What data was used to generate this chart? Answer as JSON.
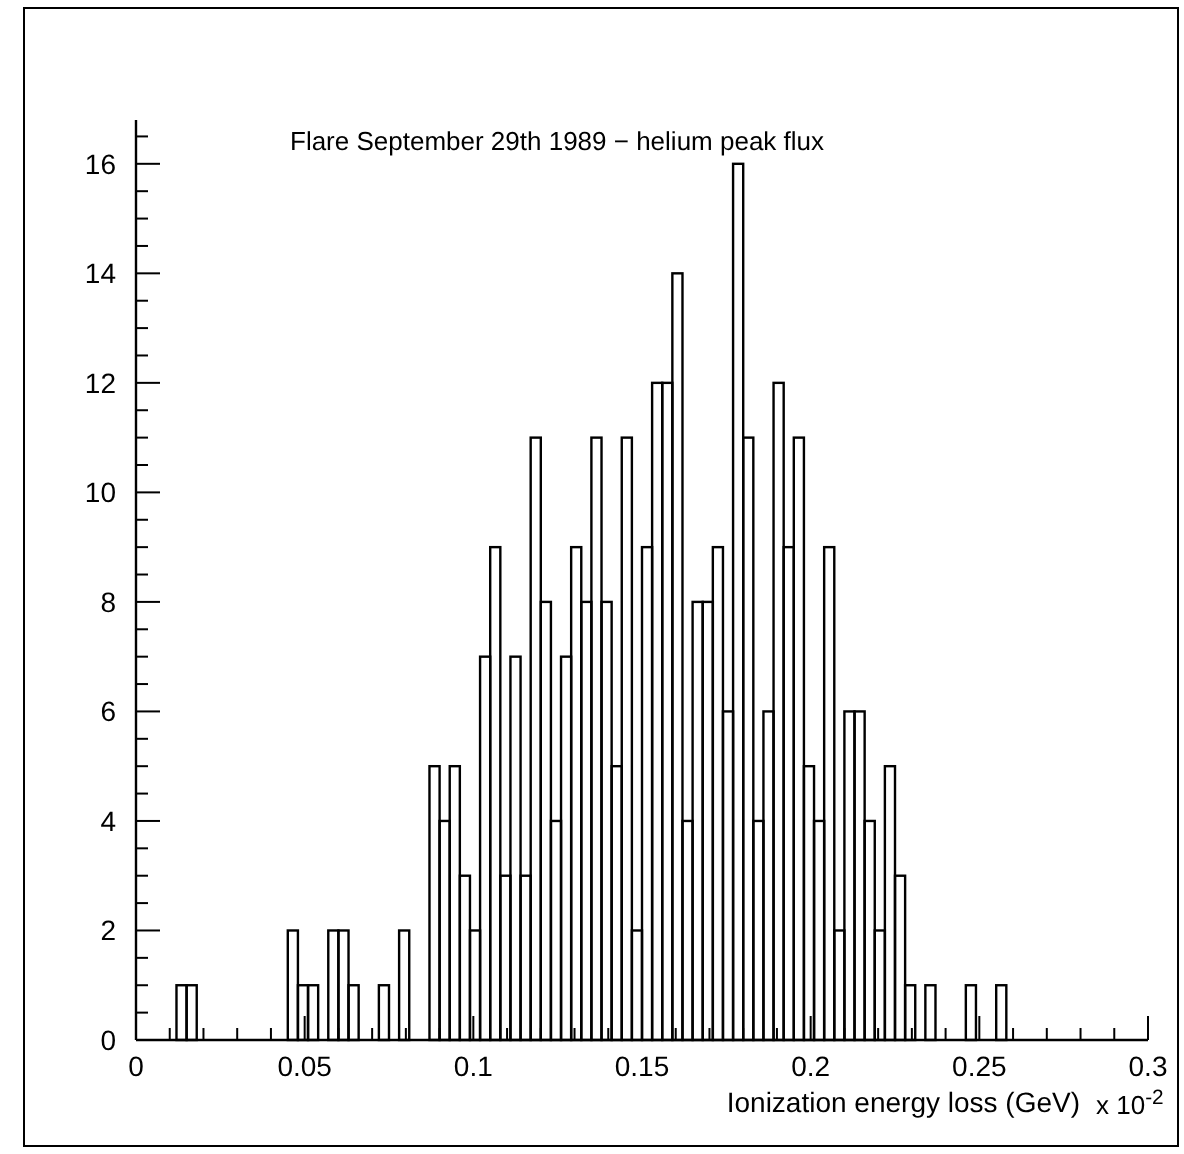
{
  "chart_data": {
    "type": "histogram",
    "title": "Flare September 29th 1989 − helium peak flux",
    "xlabel": "Ionization energy loss (GeV)",
    "annotations": [
      "x 10$^{-2}$"
    ],
    "color": "#000000",
    "bins": [
      0,
      0.003,
      0.006,
      0.009,
      0.012,
      0.015,
      0.018,
      0.021,
      0.024,
      0.027,
      0.03,
      0.033,
      0.036,
      0.039,
      0.042,
      0.045,
      0.048,
      0.051,
      0.054,
      0.057,
      0.06,
      0.063,
      0.066,
      0.069,
      0.072,
      0.075,
      0.078,
      0.081,
      0.084,
      0.087,
      0.09,
      0.093,
      0.096,
      0.099,
      0.102,
      0.105,
      0.108,
      0.111,
      0.114,
      0.117,
      0.12,
      0.123,
      0.126,
      0.129,
      0.132,
      0.135,
      0.138,
      0.141,
      0.144,
      0.147,
      0.15,
      0.153,
      0.156,
      0.159,
      0.162,
      0.165,
      0.168,
      0.171,
      0.174,
      0.177,
      0.18,
      0.183,
      0.186,
      0.189,
      0.192,
      0.195,
      0.198,
      0.201,
      0.204,
      0.207,
      0.21,
      0.213,
      0.216,
      0.219,
      0.222,
      0.225,
      0.228,
      0.231,
      0.234,
      0.237,
      0.24,
      0.243,
      0.246,
      0.249,
      0.252,
      0.255,
      0.258,
      0.261,
      0.264,
      0.267,
      0.27,
      0.273,
      0.276,
      0.279,
      0.282,
      0.285,
      0.288,
      0.291,
      0.294,
      0.297,
      0.3
    ],
    "values": [
      0,
      0,
      0,
      0,
      1,
      1,
      0,
      0,
      0,
      0,
      0,
      0,
      0,
      0,
      0,
      2,
      1,
      1,
      0,
      2,
      2,
      1,
      0,
      0,
      1,
      0,
      2,
      0,
      0,
      5,
      4,
      5,
      3,
      2,
      7,
      9,
      3,
      7,
      3,
      11,
      8,
      4,
      7,
      9,
      8,
      11,
      8,
      5,
      11,
      2,
      9,
      12,
      12,
      14,
      4,
      8,
      8,
      9,
      6,
      16,
      11,
      4,
      6,
      12,
      9,
      11,
      5,
      4,
      9,
      2,
      6,
      6,
      4,
      2,
      5,
      3,
      1,
      0,
      1,
      0,
      0,
      0,
      1,
      0,
      0,
      1,
      0,
      0,
      0,
      0,
      0,
      0,
      0,
      0,
      0,
      0,
      0,
      0,
      0,
      0
    ],
    "xlim": [
      0,
      0.3
    ],
    "xticks": [
      0,
      {
        "value": 0.01,
        "label": null
      },
      {
        "value": 0.02,
        "label": null
      },
      {
        "value": 0.03,
        "label": null
      },
      {
        "value": 0.04,
        "label": null
      },
      0.05,
      {
        "value": 0.06,
        "label": null
      },
      {
        "value": 0.07,
        "label": null
      },
      {
        "value": 0.08,
        "label": null
      },
      {
        "value": 0.09,
        "label": null
      },
      0.1,
      {
        "value": 0.11,
        "label": null
      },
      {
        "value": 0.12,
        "label": null
      },
      {
        "value": 0.13,
        "label": null
      },
      {
        "value": 0.14,
        "label": null
      },
      0.15,
      {
        "value": 0.16,
        "label": null
      },
      {
        "value": 0.17,
        "label": null
      },
      {
        "value": 0.18,
        "label": null
      },
      {
        "value": 0.19,
        "label": null
      },
      0.2,
      {
        "value": 0.21,
        "label": null
      },
      {
        "value": 0.22,
        "label": null
      },
      {
        "value": 0.23,
        "label": null
      },
      {
        "value": 0.24,
        "label": null
      },
      0.25,
      {
        "value": 0.26,
        "label": null
      },
      {
        "value": 0.27,
        "label": null
      },
      {
        "value": 0.28,
        "label": null
      },
      {
        "value": 0.29,
        "label": null
      },
      0.3
    ],
    "ylim": [
      0,
      16.8
    ],
    "yticks": [
      0,
      {
        "value": 0.5,
        "label": null
      },
      {
        "value": 1,
        "label": null
      },
      {
        "value": 1.5,
        "label": null
      },
      2,
      {
        "value": 2.5,
        "label": null
      },
      {
        "value": 3,
        "label": null
      },
      {
        "value": 3.5,
        "label": null
      },
      4,
      {
        "value": 4.5,
        "label": null
      },
      {
        "value": 5,
        "label": null
      },
      {
        "value": 5.5,
        "label": null
      },
      6,
      {
        "value": 6.5,
        "label": null
      },
      {
        "value": 7,
        "label": null
      },
      {
        "value": 7.5,
        "label": null
      },
      8,
      {
        "value": 8.5,
        "label": null
      },
      {
        "value": 9,
        "label": null
      },
      {
        "value": 9.5,
        "label": null
      },
      10,
      {
        "value": 10.5,
        "label": null
      },
      {
        "value": 11,
        "label": null
      },
      {
        "value": 11.5,
        "label": null
      },
      12,
      {
        "value": 12.5,
        "label": null
      },
      {
        "value": 13,
        "label": null
      },
      {
        "value": 13.5,
        "label": null
      },
      14,
      {
        "value": 14.5,
        "label": null
      },
      {
        "value": 15,
        "label": null
      },
      {
        "value": 15.5,
        "label": null
      },
      16,
      {
        "value": 16.5,
        "label": null
      }
    ]
  }
}
